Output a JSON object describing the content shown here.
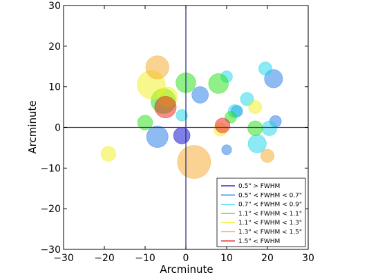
{
  "chart_data": {
    "type": "scatter",
    "title": "",
    "xlabel": "Arcminute",
    "ylabel": "Arcminute",
    "xlim": [
      -30,
      30
    ],
    "ylim": [
      -30,
      30
    ],
    "xticks": [
      "−30",
      "−20",
      "−10",
      "0",
      "10",
      "20",
      "30"
    ],
    "yticks": [
      "30",
      "20",
      "10",
      "0",
      "−10",
      "−20",
      "−30"
    ],
    "grid": false,
    "legend_position": "lower-right",
    "reference_lines": [
      {
        "orientation": "vertical",
        "value": 0,
        "color": "#1a237e"
      },
      {
        "orientation": "horizontal",
        "value": 0,
        "color": "#5c2a8c"
      }
    ],
    "series": [
      {
        "name": "0.5\" > FWHM",
        "color": "#0000cc",
        "points": [
          {
            "x": -1,
            "y": -2,
            "size": 1.0
          }
        ]
      },
      {
        "name": "0.5\" < FWHM < 0.7\"",
        "color": "#1e7ae6",
        "points": [
          {
            "x": -7,
            "y": -2.3,
            "size": 1.3
          },
          {
            "x": 3.5,
            "y": 8,
            "size": 1.0
          },
          {
            "x": 21.5,
            "y": 12,
            "size": 1.1
          },
          {
            "x": 10,
            "y": -5.5,
            "size": 0.6
          },
          {
            "x": 12.5,
            "y": 4,
            "size": 0.7
          },
          {
            "x": 22,
            "y": 1.5,
            "size": 0.7
          }
        ]
      },
      {
        "name": "0.7\" < FWHM < 0.9\"",
        "color": "#17d6e8",
        "points": [
          {
            "x": -1,
            "y": 3,
            "size": 0.7
          },
          {
            "x": 10,
            "y": 12.5,
            "size": 0.7
          },
          {
            "x": 12,
            "y": 4,
            "size": 0.8
          },
          {
            "x": 15,
            "y": 7,
            "size": 0.8
          },
          {
            "x": 19.5,
            "y": 14.5,
            "size": 0.8
          },
          {
            "x": 20.5,
            "y": -0.2,
            "size": 0.9
          },
          {
            "x": 17.5,
            "y": -4,
            "size": 1.1
          }
        ]
      },
      {
        "name": "1.1\" < FWHM < 1.1\"",
        "color": "#22e010",
        "points": [
          {
            "x": -10,
            "y": 1.2,
            "size": 0.9
          },
          {
            "x": -5.5,
            "y": 6.5,
            "size": 1.5
          },
          {
            "x": 0,
            "y": 11,
            "size": 1.2
          },
          {
            "x": 8,
            "y": 10.8,
            "size": 1.2
          },
          {
            "x": 11,
            "y": 2.5,
            "size": 0.7
          },
          {
            "x": 17,
            "y": -0.2,
            "size": 0.9
          }
        ]
      },
      {
        "name": "1.1\" < FWHM < 1.3\"",
        "color": "#f0f01a",
        "points": [
          {
            "x": -8.5,
            "y": 10.5,
            "size": 1.7
          },
          {
            "x": -4.5,
            "y": 7.5,
            "size": 1.2
          },
          {
            "x": -19,
            "y": -6.5,
            "size": 0.9
          },
          {
            "x": 8.5,
            "y": -0.5,
            "size": 0.8
          },
          {
            "x": 17,
            "y": 5,
            "size": 0.8
          }
        ]
      },
      {
        "name": "1.3\" < FWHM < 1.5\"",
        "color": "#f5a623",
        "points": [
          {
            "x": -7,
            "y": 14.8,
            "size": 1.4
          },
          {
            "x": 2,
            "y": -8.5,
            "size": 2.0
          },
          {
            "x": 20,
            "y": -7,
            "size": 0.8
          }
        ]
      },
      {
        "name": "1.5\" < FWHM",
        "color": "#ee1a1a",
        "points": [
          {
            "x": -5,
            "y": 5,
            "size": 1.3
          },
          {
            "x": 9,
            "y": 0.5,
            "size": 0.9
          }
        ]
      }
    ]
  }
}
